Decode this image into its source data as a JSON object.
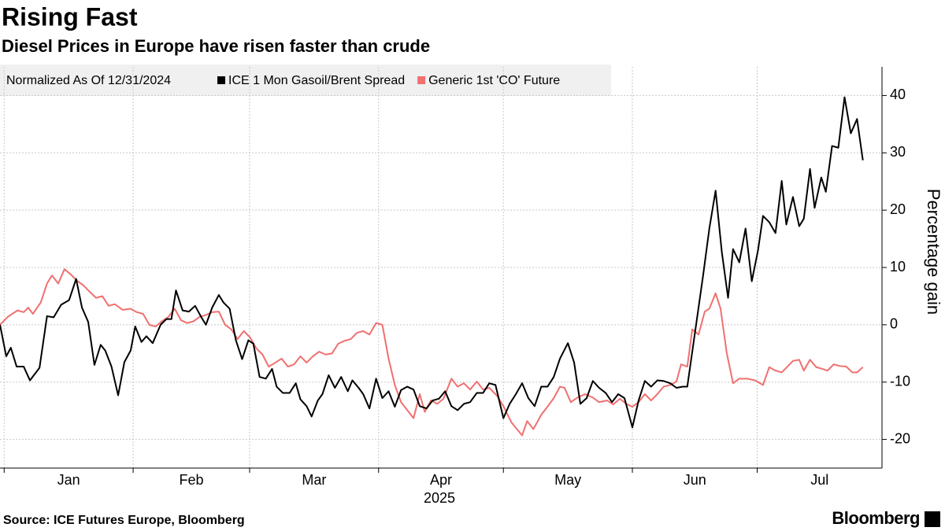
{
  "chart_data": {
    "type": "line",
    "title": "Rising Fast",
    "subtitle": "Diesel Prices in Europe have risen faster than crude",
    "legend_title": "Normalized As Of 12/31/2024",
    "ylabel": "Percentage gain",
    "xlabel": "2025",
    "source": "Source: ICE Futures Europe, Bloomberg",
    "brand": "Bloomberg",
    "xlim": [
      0,
      212
    ],
    "xticks": [
      {
        "value": 1,
        "label": "Jan"
      },
      {
        "value": 32,
        "label": "Feb"
      },
      {
        "value": 60,
        "label": "Mar"
      },
      {
        "value": 91,
        "label": "Apr"
      },
      {
        "value": 121,
        "label": "May"
      },
      {
        "value": 152,
        "label": "Jun"
      },
      {
        "value": 182,
        "label": "Jul"
      }
    ],
    "ylim": [
      -25,
      45
    ],
    "yticks": [
      -20,
      -10,
      0,
      10,
      20,
      30,
      40
    ],
    "y_axis_side": "right",
    "grid": true,
    "legend_position": "top-left",
    "series": [
      {
        "name": "ICE 1 Mon Gasoil/Brent Spread",
        "color": "#000000",
        "x": [
          0,
          1.5,
          2.6,
          4,
          5.7,
          7.2,
          9.5,
          11.3,
          12.9,
          14.7,
          16.6,
          18.3,
          19.7,
          21.2,
          22.7,
          24.2,
          25.3,
          26.8,
          28.4,
          29.9,
          31.4,
          32.5,
          34,
          35.2,
          36.7,
          38.6,
          40,
          41.2,
          42.3,
          43.9,
          45.4,
          46.9,
          48.4,
          49.5,
          51,
          52.6,
          53.7,
          55.2,
          56.7,
          58.2,
          59.7,
          60.9,
          62.4,
          63.9,
          65.4,
          66.5,
          68,
          69.6,
          71.1,
          72.2,
          73.7,
          74.9,
          76.4,
          77.5,
          79,
          80.5,
          82,
          83.6,
          84.7,
          86.2,
          87.3,
          88.8,
          90.4,
          91.9,
          93.4,
          94.9,
          96.4,
          97.9,
          99.4,
          100.9,
          102.5,
          104,
          105.5,
          107,
          108.5,
          110,
          111.5,
          113,
          114.6,
          116.1,
          117.6,
          119.1,
          121,
          122.5,
          124,
          125.5,
          127,
          128.5,
          130.1,
          131.6,
          133.1,
          134.6,
          136.5,
          138,
          139.5,
          141,
          142.5,
          144,
          145.6,
          147.1,
          148.6,
          150.1,
          152,
          153.5,
          155,
          156.5,
          158,
          159.5,
          161.1,
          162.6,
          164.1,
          165.2,
          167.1,
          169,
          170.5,
          172,
          173.5,
          175,
          176.2,
          177.7,
          179.2,
          180.7,
          182.2,
          183.4,
          184.9,
          186.4,
          187.9,
          189,
          190.6,
          192.1,
          193.2,
          194.7,
          195.8,
          197.4,
          198.5,
          200,
          201.5,
          203,
          204.5,
          206,
          207.4
        ],
        "values": [
          0,
          -5.5,
          -4,
          -7.3,
          -7.3,
          -9.7,
          -7.5,
          1.5,
          1.3,
          3.5,
          4.3,
          8,
          3,
          0.5,
          -7,
          -3.5,
          -4.5,
          -7.3,
          -12.3,
          -6.5,
          -4.5,
          -0.3,
          -3,
          -2,
          -3.2,
          0,
          1,
          1,
          6,
          2.5,
          2.3,
          3.3,
          1.3,
          0,
          3,
          5.2,
          3.9,
          2.8,
          -2.7,
          -6,
          -2.7,
          -3.3,
          -9.1,
          -9.4,
          -7.7,
          -10.8,
          -11.9,
          -11.9,
          -10.2,
          -13,
          -14.2,
          -16,
          -13.2,
          -12.1,
          -8.8,
          -11,
          -9.1,
          -11.6,
          -9.7,
          -11,
          -12.1,
          -14.6,
          -9.4,
          -12.8,
          -11.6,
          -14.3,
          -11.4,
          -10.8,
          -11.3,
          -14.2,
          -14.6,
          -13.2,
          -12.9,
          -11.6,
          -14.2,
          -14.9,
          -13.8,
          -13.5,
          -11.9,
          -11.9,
          -10.2,
          -10.5,
          -16.3,
          -13.8,
          -12.1,
          -10.2,
          -12.8,
          -14.2,
          -10.8,
          -10.8,
          -9.1,
          -5.9,
          -3.2,
          -6.6,
          -13.8,
          -12.8,
          -9.8,
          -11,
          -11.9,
          -13.5,
          -12.1,
          -12.8,
          -17.9,
          -13.2,
          -9.8,
          -10.8,
          -9.7,
          -9.8,
          -10.2,
          -11,
          -10.8,
          -10.8,
          -1.1,
          8.6,
          16.8,
          23.4,
          12.7,
          4.7,
          13.2,
          10.9,
          16.8,
          7.6,
          13,
          19,
          17.9,
          16,
          25.1,
          17.5,
          22.3,
          17.2,
          18.5,
          27.2,
          20.4,
          25.7,
          23.2,
          31.2,
          30.9,
          39.7,
          33.4,
          35.9,
          28.7
        ]
      },
      {
        "name": "Generic 1st 'CO' Future",
        "color": "#f07070",
        "x": [
          0,
          1.9,
          4.2,
          5.7,
          6.8,
          7.9,
          9.8,
          11.3,
          12.5,
          14,
          15.5,
          17,
          18.5,
          20,
          21.5,
          23.1,
          24.6,
          26.1,
          27.6,
          29.5,
          31.4,
          32.9,
          34.4,
          35.9,
          37.4,
          38.9,
          40.5,
          42,
          43.5,
          45,
          46.5,
          48,
          49.5,
          51,
          52.6,
          54.1,
          55.6,
          57.1,
          58.6,
          60.1,
          61.6,
          63.1,
          64.6,
          66.2,
          67.7,
          69.2,
          70.7,
          72.2,
          73.7,
          75.2,
          76.7,
          78.3,
          79.8,
          81.3,
          82.8,
          84.3,
          85.8,
          87.3,
          88.8,
          90.4,
          91.9,
          93.4,
          94.9,
          96.4,
          97.9,
          99.4,
          100.9,
          102.1,
          103.6,
          105.1,
          106.6,
          108.5,
          110,
          111.5,
          113,
          114.6,
          116.1,
          117.6,
          119.5,
          121,
          122.9,
          125.5,
          126.7,
          128.2,
          130.1,
          131.6,
          133.1,
          134.6,
          135.7,
          137.2,
          138.8,
          140.6,
          142.5,
          144,
          145.9,
          147.4,
          149,
          150.5,
          152,
          153.5,
          155,
          156.5,
          158,
          159.5,
          161.1,
          162.6,
          163.7,
          165.2,
          166.4,
          167.9,
          169.4,
          170.5,
          172,
          173.2,
          174.7,
          176.2,
          177.7,
          179.6,
          181.5,
          183.4,
          184.9,
          186.4,
          187.9,
          189.4,
          190.6,
          192.1,
          193.2,
          194.7,
          196.2,
          197.7,
          198.9,
          200.4,
          201.9,
          203.4,
          204.9,
          206,
          207.4
        ],
        "values": [
          0,
          1.4,
          2.5,
          2.2,
          3,
          1.9,
          3.9,
          7.2,
          8.6,
          7.2,
          9.7,
          8.8,
          7.7,
          6.9,
          5.8,
          4.7,
          5,
          3.3,
          3.6,
          2.6,
          2.8,
          2.2,
          1.9,
          0,
          -0.3,
          0.6,
          1.4,
          2.8,
          0.8,
          0.3,
          0.6,
          1.4,
          1.7,
          2.2,
          2.3,
          0,
          -0.8,
          -2.5,
          -1.1,
          -2.2,
          -4.1,
          -5.2,
          -7.3,
          -6.6,
          -5.9,
          -7.3,
          -6.9,
          -5.5,
          -6.6,
          -5.5,
          -4.7,
          -5.2,
          -5,
          -3.3,
          -2.8,
          -2.5,
          -1.4,
          -1.1,
          -1.7,
          0.3,
          0,
          -5.9,
          -10.5,
          -13.5,
          -14.9,
          -16.3,
          -12.1,
          -15.2,
          -13.2,
          -13.8,
          -12.9,
          -9.4,
          -10.8,
          -10.2,
          -11.3,
          -9.9,
          -11.3,
          -11,
          -12.4,
          -14.2,
          -17,
          -19.3,
          -16.8,
          -18.2,
          -15.7,
          -14.3,
          -12.8,
          -10.8,
          -11,
          -13.5,
          -12.7,
          -12.1,
          -12.7,
          -13.5,
          -13.2,
          -13.9,
          -12.9,
          -13.8,
          -14.3,
          -13.5,
          -12.1,
          -13.2,
          -12.1,
          -10.8,
          -10.5,
          -9.9,
          -6.9,
          -7.3,
          -0.8,
          -1.7,
          2.3,
          2.8,
          5.5,
          2.8,
          -5,
          -10.2,
          -9.4,
          -9.4,
          -9.7,
          -10.5,
          -7.4,
          -8,
          -8.3,
          -7.2,
          -6.3,
          -6.1,
          -8,
          -6.1,
          -7.4,
          -7.7,
          -8,
          -6.9,
          -7.2,
          -7.3,
          -8.3,
          -8.3,
          -7.4
        ]
      }
    ]
  }
}
